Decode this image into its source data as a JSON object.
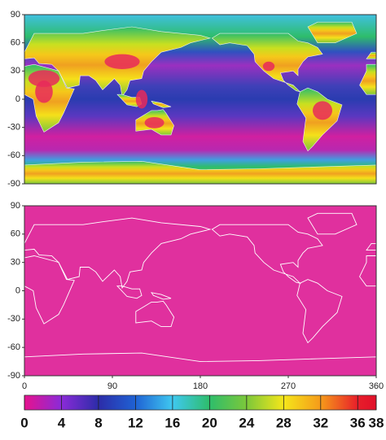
{
  "maps": [
    {
      "yticks": [
        90,
        60,
        30,
        0,
        -30,
        -60,
        -90
      ],
      "ylim": [
        -90,
        90
      ],
      "xlim": [
        0,
        360
      ]
    },
    {
      "yticks": [
        90,
        60,
        30,
        0,
        -30,
        -60,
        -90
      ],
      "ylim": [
        -90,
        90
      ],
      "xlim": [
        0,
        360
      ],
      "xticks": [
        0,
        90,
        180,
        270,
        360
      ]
    }
  ],
  "colorbar": {
    "lim": [
      0,
      38
    ],
    "ticks": [
      0,
      4,
      8,
      12,
      16,
      20,
      24,
      28,
      32,
      36,
      38
    ],
    "colors": [
      "#e6128e",
      "#8a2bd8",
      "#2c2ca8",
      "#1f62d4",
      "#3fc8f0",
      "#2ebd6b",
      "#7cc83a",
      "#f5e61a",
      "#f59a1a",
      "#e81e2a",
      "#e0102a"
    ]
  }
}
